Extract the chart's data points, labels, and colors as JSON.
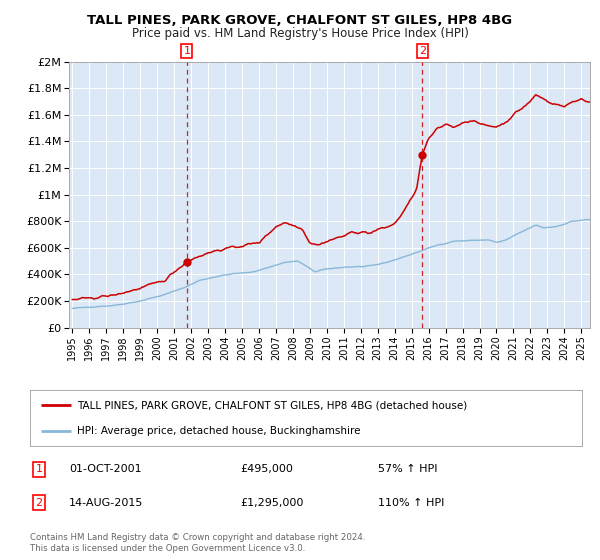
{
  "title_line1": "TALL PINES, PARK GROVE, CHALFONT ST GILES, HP8 4BG",
  "title_line2": "Price paid vs. HM Land Registry's House Price Index (HPI)",
  "sale1_date_label": "01-OCT-2001",
  "sale1_price_label": "£495,000",
  "sale1_hpi_label": "57% ↑ HPI",
  "sale1_year": 2001.75,
  "sale1_price": 495000,
  "sale2_date_label": "14-AUG-2015",
  "sale2_price_label": "£1,295,000",
  "sale2_hpi_label": "110% ↑ HPI",
  "sale2_year": 2015.62,
  "sale2_price": 1295000,
  "x_start": 1994.8,
  "x_end": 2025.5,
  "y_min": 0,
  "y_max": 2000000,
  "y_ticks": [
    0,
    200000,
    400000,
    600000,
    800000,
    1000000,
    1200000,
    1400000,
    1600000,
    1800000,
    2000000
  ],
  "y_tick_labels": [
    "£0",
    "£200K",
    "£400K",
    "£600K",
    "£800K",
    "£1M",
    "£1.2M",
    "£1.4M",
    "£1.6M",
    "£1.8M",
    "£2M"
  ],
  "fig_bg_color": "#ffffff",
  "plot_bg_color": "#dce8f5",
  "red_line_color": "#cc0000",
  "blue_line_color": "#88b8d8",
  "dashed_line_color": "#cc0000",
  "marker_color": "#cc0000",
  "grid_color": "#ffffff",
  "legend_label_red": "TALL PINES, PARK GROVE, CHALFONT ST GILES, HP8 4BG (detached house)",
  "legend_label_blue": "HPI: Average price, detached house, Buckinghamshire",
  "footer_text": "Contains HM Land Registry data © Crown copyright and database right 2024.\nThis data is licensed under the Open Government Licence v3.0.",
  "x_tick_years": [
    1995,
    1996,
    1997,
    1998,
    1999,
    2000,
    2001,
    2002,
    2003,
    2004,
    2005,
    2006,
    2007,
    2008,
    2009,
    2010,
    2011,
    2012,
    2013,
    2014,
    2015,
    2016,
    2017,
    2018,
    2019,
    2020,
    2021,
    2022,
    2023,
    2024,
    2025
  ]
}
